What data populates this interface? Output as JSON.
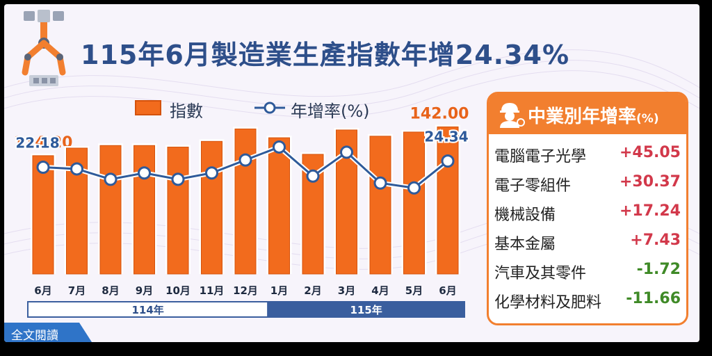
{
  "title": "115年6月製造業生產指數年增24.34%",
  "legend": {
    "index_label": "指數",
    "yoy_label": "年增率(%)"
  },
  "colors": {
    "bar": "#f26b1d",
    "bar_border": "#d4520c",
    "line": "#2e5a9a",
    "title": "#2e4f8a",
    "panel": "#f27f2f",
    "positive": "#d2384a",
    "negative": "#3f8a27"
  },
  "chart_data": {
    "type": "bar",
    "categories": [
      "6月",
      "7月",
      "8月",
      "9月",
      "10月",
      "11月",
      "12月",
      "1月",
      "2月",
      "3月",
      "4月",
      "5月",
      "6月"
    ],
    "year_groups": [
      {
        "label": "114年",
        "span": 7
      },
      {
        "label": "115年",
        "span": 6
      }
    ],
    "series": [
      {
        "name": "指數",
        "type": "bar",
        "values": [
          114.2,
          121.5,
          124.0,
          124.0,
          122.5,
          128.0,
          140.0,
          131.5,
          115.5,
          139.0,
          133.0,
          137.0,
          142.0
        ],
        "labels": [
          "114.20",
          "",
          "",
          "",
          "",
          "",
          "",
          "",
          "",
          "",
          "",
          "",
          "142.00"
        ]
      },
      {
        "name": "年增率(%)",
        "type": "line",
        "values": [
          22.18,
          21.6,
          18.0,
          20.2,
          18.0,
          20.2,
          24.7,
          29.2,
          19.1,
          27.4,
          16.7,
          15.0,
          24.34
        ],
        "labels": [
          "22.18",
          "",
          "",
          "",
          "",
          "",
          "",
          "",
          "",
          "",
          "",
          "",
          "24.34"
        ]
      }
    ],
    "bar_ylim": [
      0,
      145
    ],
    "line_ylim": [
      -25,
      45
    ]
  },
  "industries": {
    "title": "中業別年增率",
    "unit": "(%)",
    "items": [
      {
        "name": "電腦電子光學",
        "value": "+45.05",
        "sign": "pos"
      },
      {
        "name": "電子零組件",
        "value": "+30.37",
        "sign": "pos"
      },
      {
        "name": "機械設備",
        "value": "+17.24",
        "sign": "pos"
      },
      {
        "name": "基本金屬",
        "value": "+7.43",
        "sign": "pos"
      },
      {
        "name": "汽車及其零件",
        "value": "-1.72",
        "sign": "neg"
      },
      {
        "name": "化學材料及肥料",
        "value": "-11.66",
        "sign": "neg"
      }
    ]
  },
  "read_more": "全文閱讀"
}
